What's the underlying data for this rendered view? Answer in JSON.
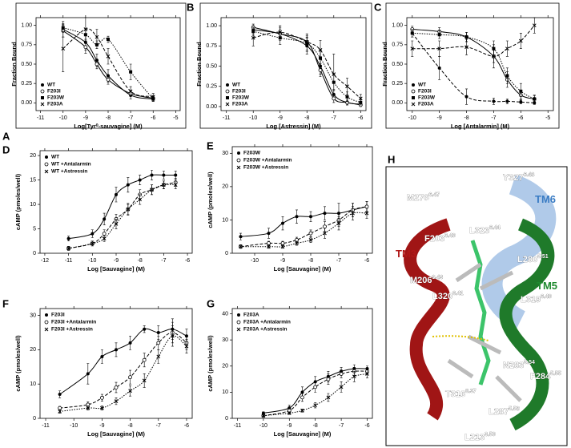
{
  "chart_data": [
    {
      "type": "line",
      "panel": "A",
      "y_label": "Fraction Bound",
      "x_label": "Log[Tyr⁰-sauvagine] (M)",
      "x": [
        -10,
        -9,
        -8.5,
        -8,
        -7,
        -6
      ],
      "xlim": [
        -11.2,
        -4.8
      ],
      "xticks": [
        -11,
        -10,
        -9,
        -8,
        -7,
        -6,
        -5
      ],
      "ylim": [
        -0.1,
        1.1
      ],
      "yticks": [
        {
          "value": 0,
          "label": "0.00"
        },
        {
          "value": 0.25,
          "label": "0.25"
        },
        {
          "value": 0.5,
          "label": "0.50"
        },
        {
          "value": 0.75,
          "label": "0.75"
        },
        {
          "value": 1,
          "label": "1.00"
        }
      ],
      "legend": "lower left",
      "frame": true,
      "series": [
        {
          "name": "WT",
          "marker": "circle",
          "dash": "solid",
          "color": "#000000",
          "values": [
            0.95,
            0.78,
            0.55,
            0.35,
            0.1,
            0.05
          ],
          "errors": [
            0.1,
            0.1,
            0.08,
            0.08,
            0.05,
            0.03
          ]
        },
        {
          "name": "F203I",
          "marker": "open-circle",
          "dash": "solid",
          "color": "#000000",
          "values": [
            0.93,
            0.72,
            0.5,
            0.3,
            0.12,
            0.06
          ],
          "errors": [
            0.08,
            0.08,
            0.06,
            0.06,
            0.04,
            0.03
          ]
        },
        {
          "name": "F203W",
          "marker": "square",
          "dash": "dotted",
          "color": "#000000",
          "values": [
            0.97,
            0.88,
            0.75,
            0.82,
            0.4,
            0.05
          ],
          "errors": [
            0.05,
            0.06,
            0.05,
            0.04,
            0.1,
            0.03
          ]
        },
        {
          "name": "F203A",
          "marker": "x",
          "dash": "dashed",
          "color": "#000000",
          "values": [
            0.7,
            0.95,
            0.85,
            0.6,
            0.15,
            0.08
          ],
          "errors": [
            0.3,
            0.15,
            0.1,
            0.1,
            0.06,
            0.04
          ]
        }
      ]
    },
    {
      "type": "line",
      "panel": "B",
      "y_label": "Fraction Bound",
      "x_label": "Log [Astressin] (M)",
      "x": [
        -10,
        -9,
        -8,
        -7.5,
        -7,
        -6.5,
        -6
      ],
      "xlim": [
        -11.2,
        -5.8
      ],
      "xticks": [
        -11,
        -10,
        -9,
        -8,
        -7,
        -6
      ],
      "ylim": [
        -0.05,
        1.1
      ],
      "yticks": [
        {
          "value": 0,
          "label": "0.00"
        },
        {
          "value": 0.25,
          "label": "0.25"
        },
        {
          "value": 0.5,
          "label": "0.50"
        },
        {
          "value": 0.75,
          "label": "0.75"
        },
        {
          "value": 1,
          "label": "1.00"
        }
      ],
      "legend": "lower left",
      "frame": true,
      "series": [
        {
          "name": "WT",
          "marker": "circle",
          "dash": "solid",
          "color": "#000000",
          "values": [
            0.95,
            0.9,
            0.75,
            0.5,
            0.15,
            0.05,
            0.03
          ],
          "errors": [
            0.05,
            0.08,
            0.1,
            0.1,
            0.06,
            0.03,
            0.02
          ]
        },
        {
          "name": "F203I",
          "marker": "open-circle",
          "dash": "solid",
          "color": "#000000",
          "values": [
            0.98,
            0.9,
            0.8,
            0.45,
            0.1,
            0.05,
            0.02
          ],
          "errors": [
            0.04,
            0.06,
            0.06,
            0.08,
            0.05,
            0.03,
            0.02
          ]
        },
        {
          "name": "F203W",
          "marker": "square",
          "dash": "dotted",
          "color": "#000000",
          "values": [
            0.93,
            0.85,
            0.78,
            0.6,
            0.3,
            0.12,
            0.05
          ],
          "errors": [
            0.05,
            0.08,
            0.1,
            0.1,
            0.1,
            0.06,
            0.03
          ]
        },
        {
          "name": "F203A",
          "marker": "x",
          "dash": "dashed",
          "color": "#000000",
          "values": [
            0.85,
            0.92,
            0.8,
            0.7,
            0.4,
            0.25,
            0.1
          ],
          "errors": [
            0.1,
            0.08,
            0.1,
            0.12,
            0.25,
            0.1,
            0.05
          ]
        }
      ]
    },
    {
      "type": "line",
      "panel": "C",
      "y_label": "Fraction Bound",
      "x_label": "Log [Antalarmin] (M)",
      "x": [
        -10,
        -9,
        -8,
        -7,
        -6.5,
        -6,
        -5.5
      ],
      "xlim": [
        -10.2,
        -4.8
      ],
      "xticks": [
        -10,
        -9,
        -8,
        -7,
        -6,
        -5
      ],
      "ylim": [
        -0.1,
        1.1
      ],
      "yticks": [
        {
          "value": 0,
          "label": "0.00"
        },
        {
          "value": 0.25,
          "label": "0.25"
        },
        {
          "value": 0.5,
          "label": "0.50"
        },
        {
          "value": 0.75,
          "label": "0.75"
        },
        {
          "value": 1,
          "label": "1.00"
        }
      ],
      "legend": "lower left",
      "frame": true,
      "series": [
        {
          "name": "WT",
          "marker": "circle",
          "dash": "dashed",
          "color": "#000000",
          "values": [
            0.9,
            0.45,
            0.08,
            0.02,
            0.02,
            0.01,
            0.0
          ],
          "errors": [
            0.05,
            0.15,
            0.1,
            0.04,
            0.03,
            0.02,
            0.02
          ]
        },
        {
          "name": "F203I",
          "marker": "open-circle",
          "dash": "solid",
          "color": "#000000",
          "values": [
            0.95,
            0.92,
            0.85,
            0.6,
            0.3,
            0.1,
            0.05
          ],
          "errors": [
            0.04,
            0.05,
            0.06,
            0.08,
            0.1,
            0.06,
            0.04
          ]
        },
        {
          "name": "F203W",
          "marker": "square",
          "dash": "dotted",
          "color": "#000000",
          "values": [
            0.9,
            0.88,
            0.85,
            0.7,
            0.35,
            0.15,
            0.05
          ],
          "errors": [
            0.05,
            0.05,
            0.06,
            0.1,
            0.1,
            0.1,
            0.05
          ]
        },
        {
          "name": "F203A",
          "marker": "x",
          "dash": "dashed",
          "color": "#000000",
          "values": [
            0.7,
            0.7,
            0.72,
            0.6,
            0.7,
            0.8,
            1.0
          ],
          "errors": [
            0.1,
            0.1,
            0.1,
            0.15,
            0.1,
            0.1,
            0.1
          ]
        }
      ]
    },
    {
      "type": "line",
      "panel": "D",
      "y_label": "cAMP (pmoles/well)",
      "x_label": "Log [Sauvagine] (M)",
      "x": [
        -11,
        -10,
        -9.5,
        -9,
        -8.5,
        -8,
        -7.5,
        -7,
        -6.5
      ],
      "xlim": [
        -12.2,
        -5.8
      ],
      "xticks": [
        -12,
        -11,
        -10,
        -9,
        -8,
        -7,
        -6
      ],
      "ylim": [
        0,
        21
      ],
      "yticks": [
        0,
        5,
        10,
        15,
        20
      ],
      "legend": "upper left",
      "frame": false,
      "series": [
        {
          "name": "WT",
          "marker": "circle",
          "dash": "solid",
          "color": "#000000",
          "values": [
            3,
            4,
            7,
            12,
            14,
            15,
            16,
            16,
            16
          ],
          "errors": [
            0.5,
            0.8,
            1.2,
            1.5,
            1.5,
            1,
            1,
            0.8,
            0.8
          ]
        },
        {
          "name": "WT +Antalarmin",
          "marker": "open-circle",
          "dash": "dashed",
          "color": "#000000",
          "values": [
            1,
            2,
            4,
            7,
            9,
            12,
            13,
            14,
            14.5
          ],
          "errors": [
            0.4,
            0.5,
            0.8,
            1,
            1.2,
            1,
            1,
            0.8,
            0.8
          ]
        },
        {
          "name": "WT +Astressin",
          "marker": "x",
          "dash": "dotted",
          "color": "#000000",
          "values": [
            1,
            2,
            3,
            6,
            9,
            11,
            13,
            14,
            14
          ],
          "errors": [
            0.4,
            0.5,
            0.6,
            1,
            1,
            1,
            1,
            0.8,
            0.8
          ]
        }
      ]
    },
    {
      "type": "line",
      "panel": "E",
      "y_label": "cAMP (pmoles/well)",
      "x_label": "Log [Sauvagine] (M)",
      "x": [
        -10.5,
        -9.5,
        -9,
        -8.5,
        -8,
        -7.5,
        -7,
        -6.5,
        -6
      ],
      "xlim": [
        -10.8,
        -5.8
      ],
      "xticks": [
        -10,
        -9,
        -8,
        -7,
        -6
      ],
      "ylim": [
        0,
        32
      ],
      "yticks": [
        0,
        10,
        20,
        30
      ],
      "legend": "upper left",
      "frame": false,
      "series": [
        {
          "name": "F203W",
          "marker": "circle",
          "dash": "solid",
          "color": "#000000",
          "values": [
            5,
            6,
            9,
            11,
            11,
            12,
            12,
            13,
            14
          ],
          "errors": [
            1,
            1.5,
            2,
            2,
            1.5,
            2,
            3,
            2,
            1.5
          ]
        },
        {
          "name": "F203W +Antalarmin",
          "marker": "open-circle",
          "dash": "dashed",
          "color": "#000000",
          "values": [
            2,
            3,
            3,
            4,
            6,
            8,
            10,
            13,
            14
          ],
          "errors": [
            0.5,
            0.6,
            0.6,
            0.8,
            1,
            1.5,
            2,
            2,
            1.5
          ]
        },
        {
          "name": "F203W +Astressin",
          "marker": "x",
          "dash": "dotted",
          "color": "#000000",
          "values": [
            2,
            2,
            2,
            3,
            4,
            6,
            9,
            12,
            12
          ],
          "errors": [
            0.5,
            0.5,
            0.5,
            0.6,
            0.8,
            1.5,
            2,
            2,
            1.5
          ]
        }
      ]
    },
    {
      "type": "line",
      "panel": "F",
      "y_label": "cAMP (pmoles/well)",
      "x_label": "Log [Sauvagine] (M)",
      "x": [
        -10.5,
        -9.5,
        -9,
        -8.5,
        -8,
        -7.5,
        -7,
        -6.5,
        -6
      ],
      "xlim": [
        -11.2,
        -5.8
      ],
      "xticks": [
        -11,
        -10,
        -9,
        -8,
        -7,
        -6
      ],
      "ylim": [
        0,
        32
      ],
      "yticks": [
        0,
        10,
        20,
        30
      ],
      "legend": "upper left",
      "frame": false,
      "series": [
        {
          "name": "F203I",
          "marker": "circle",
          "dash": "solid",
          "color": "#000000",
          "values": [
            7,
            13,
            18,
            20,
            22,
            26,
            25,
            26,
            24
          ],
          "errors": [
            1,
            3,
            2,
            2,
            2,
            1,
            2,
            3,
            2
          ]
        },
        {
          "name": "F203I +Antalarmin",
          "marker": "open-circle",
          "dash": "dashed",
          "color": "#000000",
          "values": [
            3,
            4,
            6,
            9,
            12,
            17,
            22,
            25,
            22
          ],
          "errors": [
            0.5,
            0.8,
            1,
            1.5,
            2,
            2,
            2,
            3,
            2
          ]
        },
        {
          "name": "F203I +Astressin",
          "marker": "x",
          "dash": "dotted",
          "color": "#000000",
          "values": [
            2,
            3,
            3,
            5,
            8,
            11,
            18,
            24,
            21
          ],
          "errors": [
            0.5,
            0.6,
            0.6,
            1,
            1.5,
            2,
            2,
            3,
            2
          ]
        }
      ]
    },
    {
      "type": "line",
      "panel": "G",
      "y_label": "cAMP (pmoles/well)",
      "x_label": "Log [Sauvagine] (M)",
      "x": [
        -10,
        -9,
        -8.5,
        -8,
        -7.5,
        -7,
        -6.5,
        -6
      ],
      "xlim": [
        -11.2,
        -5.8
      ],
      "xticks": [
        -11,
        -10,
        -9,
        -8,
        -7,
        -6
      ],
      "ylim": [
        0,
        42
      ],
      "yticks": [
        0,
        10,
        20,
        30,
        40
      ],
      "legend": "upper left",
      "frame": false,
      "series": [
        {
          "name": "F203A",
          "marker": "circle",
          "dash": "solid",
          "color": "#000000",
          "values": [
            2,
            4,
            10,
            14,
            16,
            18,
            19,
            19
          ],
          "errors": [
            0.5,
            1,
            2,
            2,
            2,
            1.5,
            1.5,
            1
          ]
        },
        {
          "name": "F203A +Antalarmin",
          "marker": "open-circle",
          "dash": "dashed",
          "color": "#000000",
          "values": [
            1,
            3,
            8,
            12,
            15,
            17,
            18,
            18
          ],
          "errors": [
            0.4,
            0.8,
            1.5,
            2,
            2,
            1.5,
            1.5,
            1
          ]
        },
        {
          "name": "F203A +Astressin",
          "marker": "x",
          "dash": "dotted",
          "color": "#000000",
          "values": [
            1,
            2,
            3,
            5,
            8,
            12,
            16,
            17
          ],
          "errors": [
            0.4,
            0.5,
            0.6,
            1,
            1.5,
            2,
            2,
            1.5
          ]
        }
      ]
    }
  ],
  "structure": {
    "panel": "H",
    "labels": [
      {
        "text": "M276",
        "sup": "6.47"
      },
      {
        "text": "Y327",
        "sup": "6.48"
      },
      {
        "text": "TM6"
      },
      {
        "text": "F203",
        "sup": "3.40"
      },
      {
        "text": "L323",
        "sup": "6.44"
      },
      {
        "text": "TM3"
      },
      {
        "text": "L280",
        "sup": "5.51"
      },
      {
        "text": "M206",
        "sup": "3.43"
      },
      {
        "text": "L320",
        "sup": "6.41"
      },
      {
        "text": "TM5"
      },
      {
        "text": "L319",
        "sup": "6.40"
      },
      {
        "text": "N283",
        "sup": "5.54"
      },
      {
        "text": "F284",
        "sup": "5.55"
      },
      {
        "text": "T316",
        "sup": "6.37"
      },
      {
        "text": "L287",
        "sup": "5.58"
      },
      {
        "text": "L213",
        "sup": "3.50"
      }
    ]
  }
}
